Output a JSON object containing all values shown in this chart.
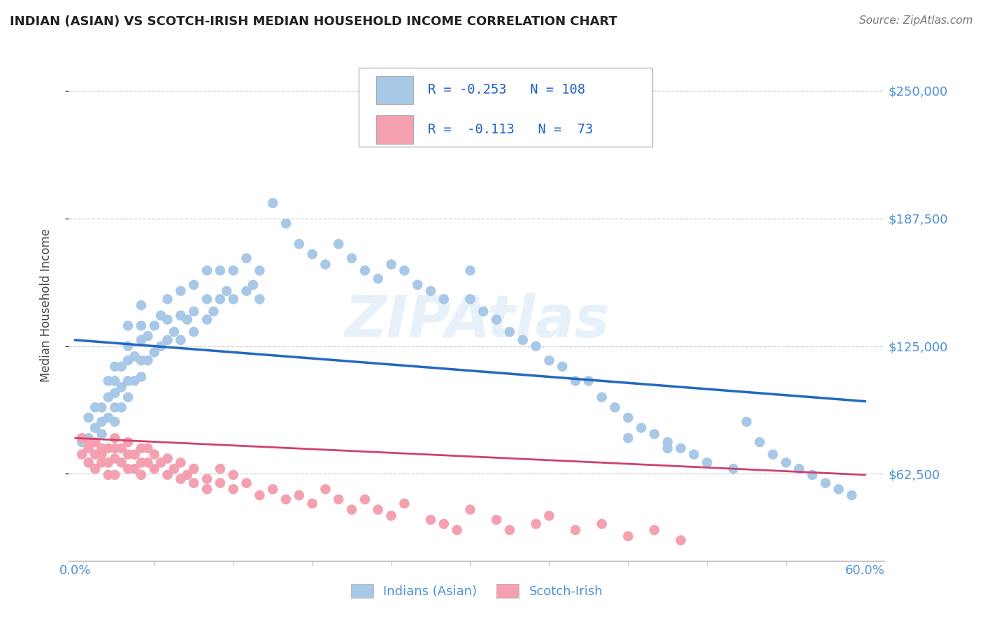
{
  "title": "INDIAN (ASIAN) VS SCOTCH-IRISH MEDIAN HOUSEHOLD INCOME CORRELATION CHART",
  "source": "Source: ZipAtlas.com",
  "ylabel": "Median Household Income",
  "background_color": "#ffffff",
  "plot_bg_color": "#ffffff",
  "xlim": [
    -0.005,
    0.615
  ],
  "ylim": [
    20000,
    270000
  ],
  "yticks": [
    62500,
    125000,
    187500,
    250000
  ],
  "ytick_labels": [
    "$62,500",
    "$125,000",
    "$187,500",
    "$250,000"
  ],
  "xtick_positions": [
    0.0,
    0.6
  ],
  "xtick_labels": [
    "0.0%",
    "60.0%"
  ],
  "color_indian": "#a8c8e8",
  "color_scotch": "#f4a0b0",
  "line_color_indian": "#2468c0",
  "line_color_scotch": "#d04070",
  "legend_R_indian": "-0.253",
  "legend_N_indian": "108",
  "legend_R_scotch": "-0.113",
  "legend_N_scotch": "73",
  "legend_label_indian": "Indians (Asian)",
  "legend_label_scotch": "Scotch-Irish",
  "indian_trend_x0": 0.0,
  "indian_trend_y0": 128000,
  "indian_trend_x1": 0.6,
  "indian_trend_y1": 98000,
  "scotch_trend_x0": 0.0,
  "scotch_trend_y0": 80000,
  "scotch_trend_x1": 0.6,
  "scotch_trend_y1": 62000,
  "indian_x": [
    0.005,
    0.01,
    0.01,
    0.015,
    0.015,
    0.02,
    0.02,
    0.02,
    0.025,
    0.025,
    0.025,
    0.03,
    0.03,
    0.03,
    0.03,
    0.03,
    0.035,
    0.035,
    0.035,
    0.04,
    0.04,
    0.04,
    0.04,
    0.04,
    0.045,
    0.045,
    0.05,
    0.05,
    0.05,
    0.05,
    0.05,
    0.055,
    0.055,
    0.06,
    0.06,
    0.065,
    0.065,
    0.07,
    0.07,
    0.07,
    0.075,
    0.08,
    0.08,
    0.08,
    0.085,
    0.09,
    0.09,
    0.09,
    0.1,
    0.1,
    0.1,
    0.105,
    0.11,
    0.11,
    0.115,
    0.12,
    0.12,
    0.13,
    0.13,
    0.135,
    0.14,
    0.14,
    0.15,
    0.16,
    0.17,
    0.18,
    0.19,
    0.2,
    0.21,
    0.22,
    0.23,
    0.24,
    0.25,
    0.26,
    0.27,
    0.28,
    0.3,
    0.3,
    0.31,
    0.32,
    0.33,
    0.34,
    0.35,
    0.36,
    0.37,
    0.38,
    0.39,
    0.4,
    0.41,
    0.42,
    0.43,
    0.44,
    0.45,
    0.46,
    0.47,
    0.48,
    0.5,
    0.51,
    0.52,
    0.53,
    0.54,
    0.55,
    0.56,
    0.57,
    0.58,
    0.59,
    0.42,
    0.45
  ],
  "indian_y": [
    78000,
    80000,
    90000,
    85000,
    95000,
    82000,
    88000,
    95000,
    90000,
    100000,
    108000,
    88000,
    95000,
    102000,
    108000,
    115000,
    95000,
    105000,
    115000,
    100000,
    108000,
    118000,
    125000,
    135000,
    108000,
    120000,
    110000,
    118000,
    128000,
    135000,
    145000,
    118000,
    130000,
    122000,
    135000,
    125000,
    140000,
    128000,
    138000,
    148000,
    132000,
    128000,
    140000,
    152000,
    138000,
    132000,
    142000,
    155000,
    138000,
    148000,
    162000,
    142000,
    148000,
    162000,
    152000,
    148000,
    162000,
    152000,
    168000,
    155000,
    148000,
    162000,
    195000,
    185000,
    175000,
    170000,
    165000,
    175000,
    168000,
    162000,
    158000,
    165000,
    162000,
    155000,
    152000,
    148000,
    148000,
    162000,
    142000,
    138000,
    132000,
    128000,
    125000,
    118000,
    115000,
    108000,
    108000,
    100000,
    95000,
    90000,
    85000,
    82000,
    78000,
    75000,
    72000,
    68000,
    65000,
    88000,
    78000,
    72000,
    68000,
    65000,
    62000,
    58000,
    55000,
    52000,
    80000,
    75000
  ],
  "scotch_x": [
    0.005,
    0.005,
    0.01,
    0.01,
    0.01,
    0.015,
    0.015,
    0.015,
    0.02,
    0.02,
    0.02,
    0.025,
    0.025,
    0.025,
    0.03,
    0.03,
    0.03,
    0.03,
    0.035,
    0.035,
    0.04,
    0.04,
    0.04,
    0.045,
    0.045,
    0.05,
    0.05,
    0.05,
    0.055,
    0.055,
    0.06,
    0.06,
    0.065,
    0.07,
    0.07,
    0.075,
    0.08,
    0.08,
    0.085,
    0.09,
    0.09,
    0.1,
    0.1,
    0.11,
    0.11,
    0.12,
    0.12,
    0.13,
    0.14,
    0.15,
    0.16,
    0.17,
    0.18,
    0.19,
    0.2,
    0.21,
    0.22,
    0.23,
    0.24,
    0.25,
    0.27,
    0.28,
    0.29,
    0.3,
    0.32,
    0.33,
    0.35,
    0.36,
    0.38,
    0.4,
    0.42,
    0.44,
    0.46
  ],
  "scotch_y": [
    80000,
    72000,
    78000,
    68000,
    75000,
    72000,
    78000,
    65000,
    72000,
    68000,
    75000,
    68000,
    75000,
    62000,
    70000,
    75000,
    62000,
    80000,
    68000,
    75000,
    65000,
    72000,
    78000,
    65000,
    72000,
    68000,
    75000,
    62000,
    68000,
    75000,
    65000,
    72000,
    68000,
    62000,
    70000,
    65000,
    60000,
    68000,
    62000,
    58000,
    65000,
    60000,
    55000,
    58000,
    65000,
    55000,
    62000,
    58000,
    52000,
    55000,
    50000,
    52000,
    48000,
    55000,
    50000,
    45000,
    50000,
    45000,
    42000,
    48000,
    40000,
    38000,
    35000,
    45000,
    40000,
    35000,
    38000,
    42000,
    35000,
    38000,
    32000,
    35000,
    30000
  ]
}
